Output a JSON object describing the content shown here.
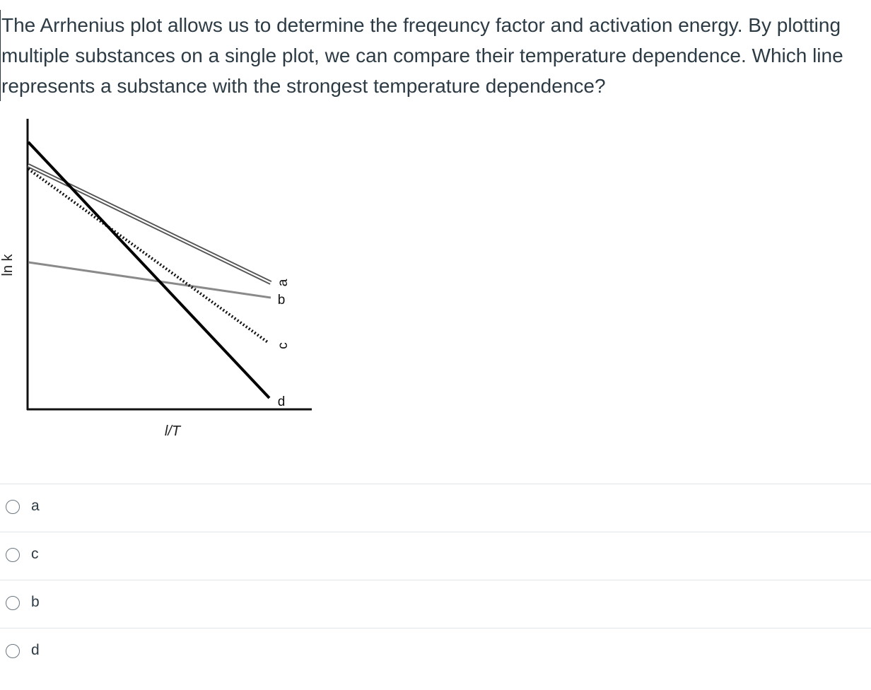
{
  "question": {
    "text": "The Arrhenius plot allows us to determine the freqeuncy factor and activation energy. By plotting multiple substances on a single plot, we can compare their temperature dependence. Which line represents a substance with the strongest temperature dependence?"
  },
  "figure": {
    "x_axis_label": "l/T",
    "y_axis_label": "ln k",
    "line_labels": {
      "a": "a",
      "b": "b",
      "c": "c",
      "d": "d"
    },
    "colors": {
      "axes": "#111111",
      "line_a": "#666666",
      "line_b": "#8a8a8a",
      "line_c": "#111111",
      "line_d": "#000000"
    },
    "line_styles": {
      "a": "double thin line",
      "b": "solid gray",
      "c": "dotted black",
      "d": "solid thick black"
    }
  },
  "answers": [
    {
      "label": "a"
    },
    {
      "label": "c"
    },
    {
      "label": "b"
    },
    {
      "label": "d"
    }
  ],
  "colors": {
    "text": "#2d3b45",
    "divider": "#e1e5e8",
    "radio_border": "#6b7780"
  },
  "icons": {
    "answer_radio": "radio-circle-icon"
  }
}
